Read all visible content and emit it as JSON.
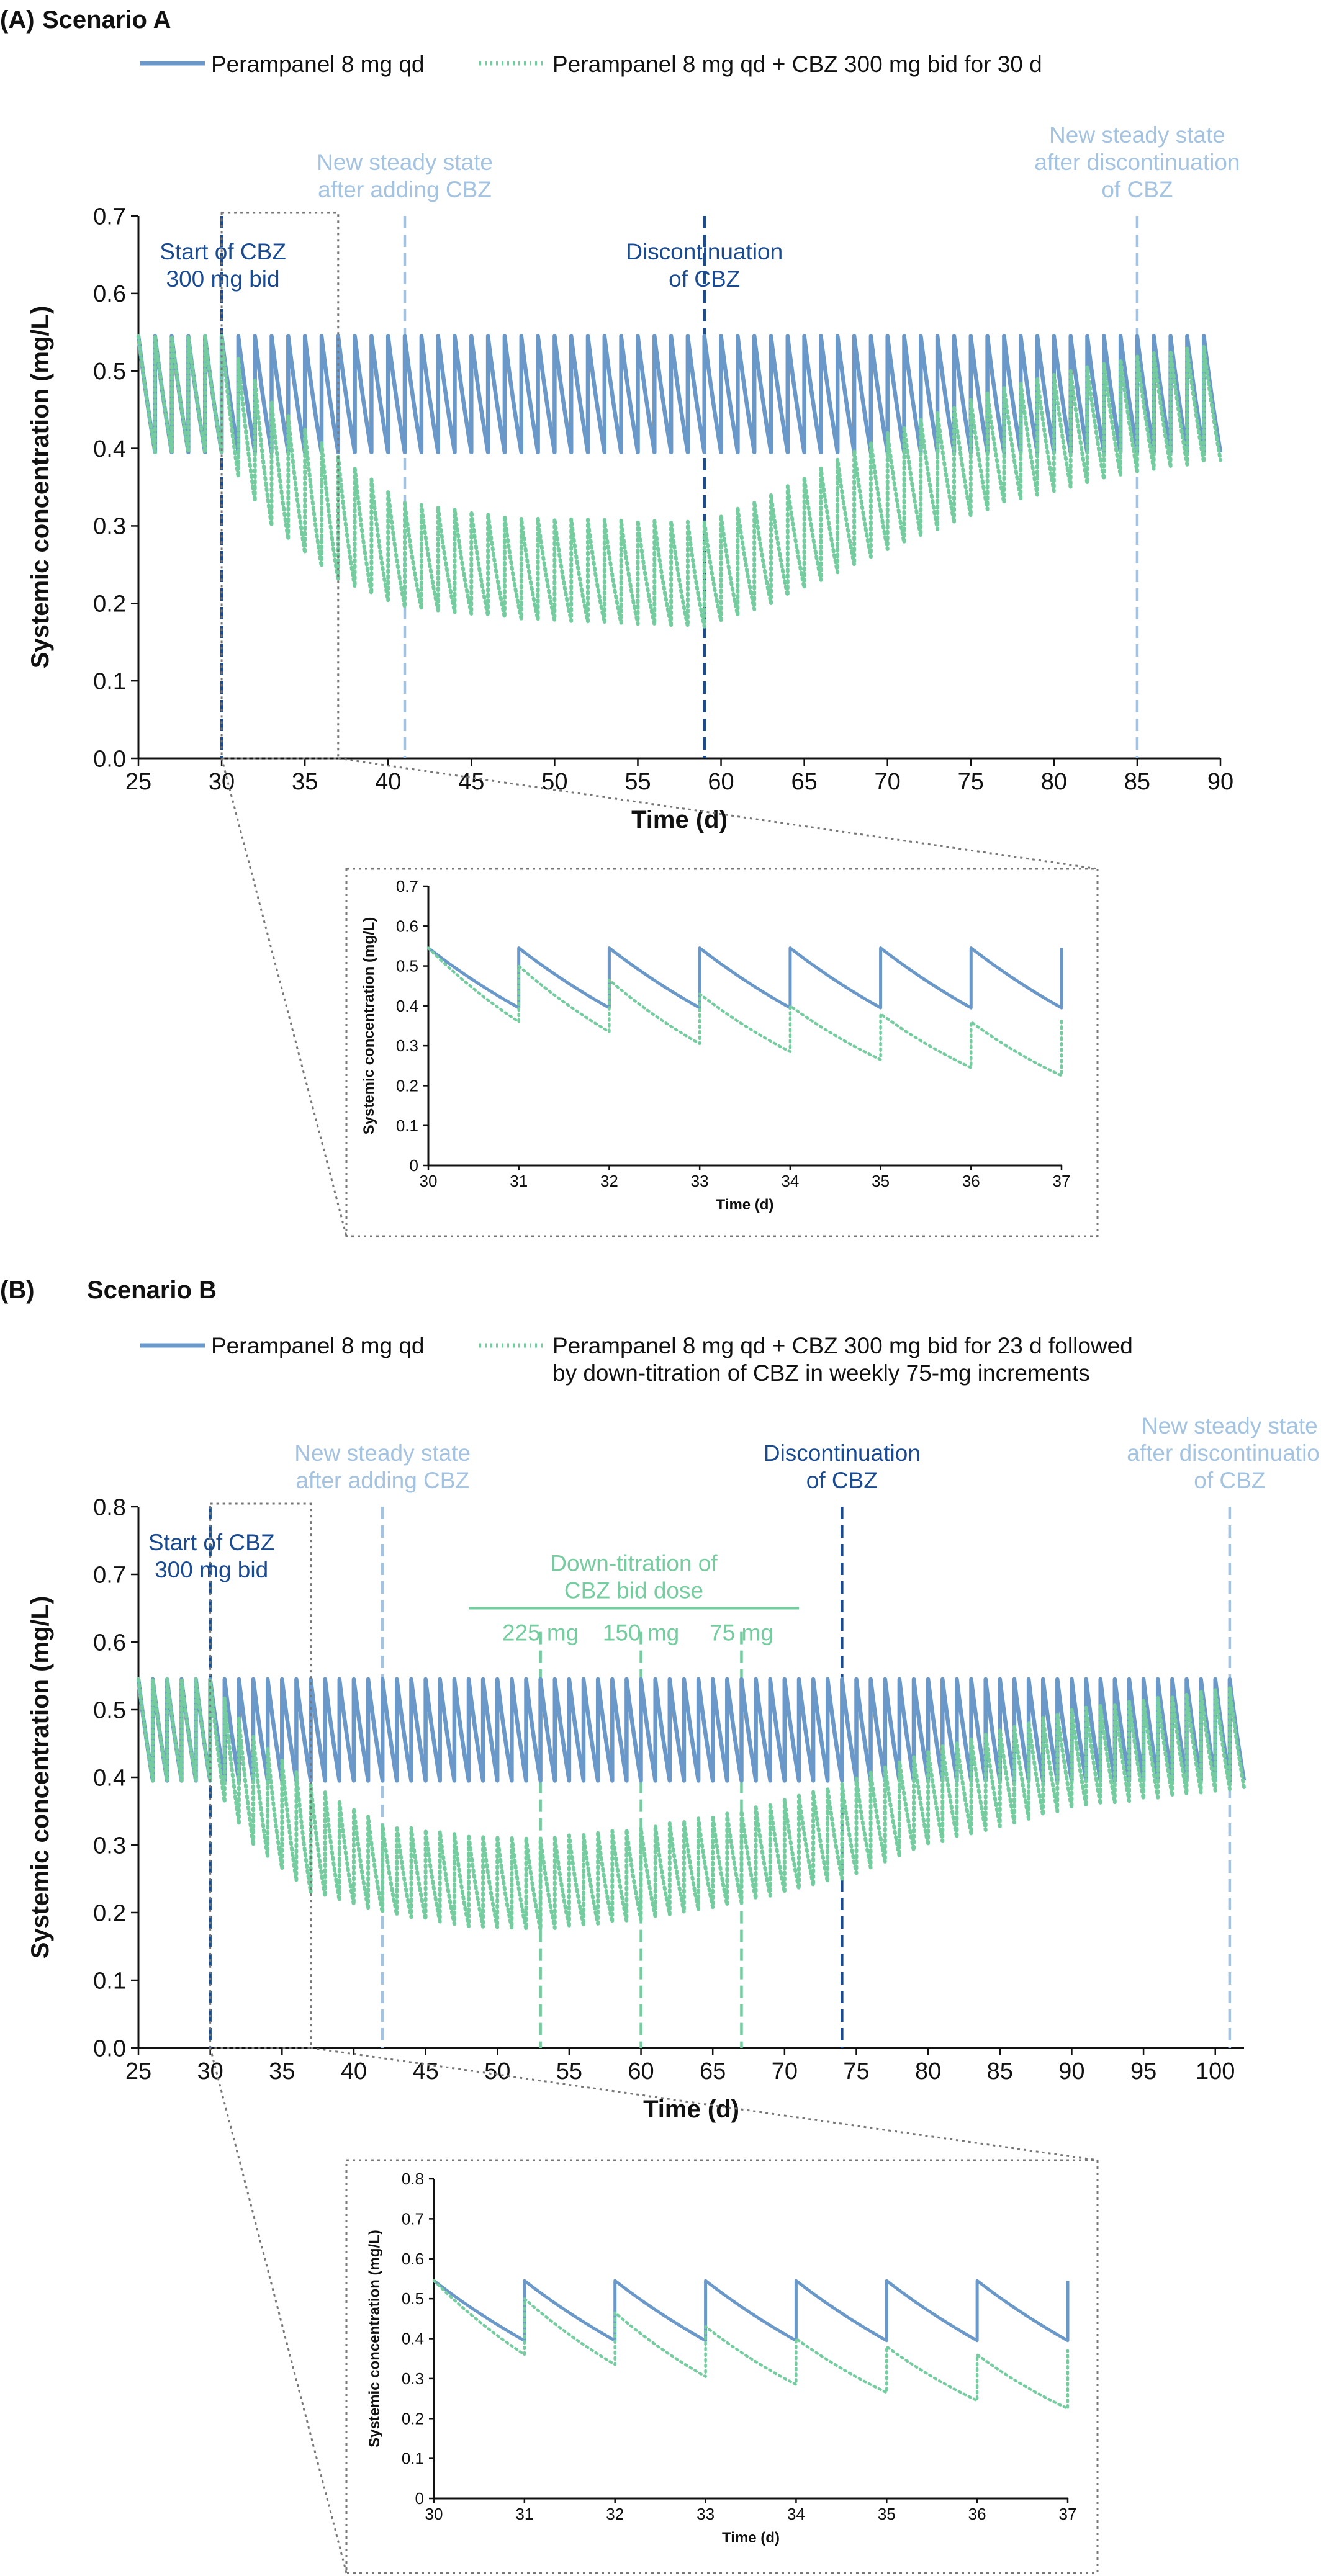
{
  "colors": {
    "solid": "#6a98c8",
    "dotted": "#74cc9f",
    "dark_dash": "#1a4a90",
    "light_dash": "#a3c3e0",
    "titration": "#74cc9f",
    "box": "#777777"
  },
  "panels": [
    {
      "letter": "(A)",
      "title": "Scenario A",
      "legend": {
        "solid": "Perampanel 8 mg qd",
        "dotted": [
          "Perampanel 8 mg qd + CBZ 300 mg bid for 30 d"
        ]
      }
    },
    {
      "letter": "(B)",
      "title": "Scenario B",
      "legend": {
        "solid": "Perampanel 8 mg qd",
        "dotted": [
          "Perampanel 8 mg qd + CBZ 300 mg bid for 23 d followed",
          "by down-titration of CBZ in weekly 75-mg increments"
        ]
      }
    }
  ],
  "chart_data": [
    {
      "id": "A-main",
      "type": "line",
      "xlabel": "Time (d)",
      "ylabel": "Systemic concentration (mg/L)",
      "xlim": [
        25,
        90
      ],
      "ylim": [
        0,
        0.7
      ],
      "xticks": [
        25,
        30,
        35,
        40,
        45,
        50,
        55,
        60,
        65,
        70,
        75,
        80,
        85,
        90
      ],
      "yticks": [
        "0.0",
        "0.1",
        "0.2",
        "0.3",
        "0.4",
        "0.5",
        "0.6",
        "0.7"
      ],
      "series": [
        {
          "name": "Perampanel 8 mg qd",
          "style": "solid",
          "dose_interval_d": 1,
          "peak": 0.545,
          "trough": 0.395
        },
        {
          "name": "Perampanel 8 mg qd + CBZ 300 mg bid for 30 d",
          "style": "dotted",
          "dose_interval_d": 1,
          "trough_profile": [
            [
              25,
              0.395
            ],
            [
              30,
              0.395
            ],
            [
              33,
              0.3
            ],
            [
              37,
              0.23
            ],
            [
              41,
              0.195
            ],
            [
              48,
              0.18
            ],
            [
              59,
              0.17
            ],
            [
              63,
              0.2
            ],
            [
              70,
              0.27
            ],
            [
              77,
              0.33
            ],
            [
              85,
              0.37
            ],
            [
              90,
              0.385
            ]
          ],
          "peak_profile": [
            [
              25,
              0.545
            ],
            [
              30,
              0.545
            ],
            [
              33,
              0.46
            ],
            [
              37,
              0.39
            ],
            [
              41,
              0.33
            ],
            [
              48,
              0.31
            ],
            [
              59,
              0.305
            ],
            [
              63,
              0.34
            ],
            [
              70,
              0.42
            ],
            [
              77,
              0.48
            ],
            [
              85,
              0.52
            ],
            [
              90,
              0.535
            ]
          ]
        }
      ],
      "annotations": [
        {
          "x": 30,
          "style": "dark",
          "text": [
            "Start of CBZ",
            "300 mg bid"
          ],
          "pos": "inside-left"
        },
        {
          "x": 41,
          "style": "light",
          "text": [
            "New steady state",
            "after adding CBZ"
          ],
          "pos": "above"
        },
        {
          "x": 59,
          "style": "dark",
          "text": [
            "Discontinuation",
            "of CBZ"
          ],
          "pos": "inside"
        },
        {
          "x": 85,
          "style": "light",
          "text": [
            "New steady state",
            "after discontinuation",
            "of CBZ"
          ],
          "pos": "above"
        }
      ],
      "zoom_box": [
        30,
        37
      ]
    },
    {
      "id": "A-inset",
      "type": "line",
      "xlabel": "Time (d)",
      "ylabel": "Systemic concentration (mg/L)",
      "xlim": [
        30,
        37
      ],
      "ylim": [
        0,
        0.7
      ],
      "xticks": [
        30,
        31,
        32,
        33,
        34,
        35,
        36,
        37
      ],
      "yticks": [
        "0",
        "0.1",
        "0.2",
        "0.3",
        "0.4",
        "0.5",
        "0.6",
        "0.7"
      ],
      "series": [
        {
          "name": "Perampanel 8 mg qd",
          "style": "solid",
          "peaks": [
            0.545,
            0.545,
            0.545,
            0.545,
            0.545,
            0.545,
            0.545,
            0.545
          ],
          "troughs": [
            0.395,
            0.395,
            0.395,
            0.395,
            0.395,
            0.395,
            0.395
          ]
        },
        {
          "name": "Perampanel 8 mg qd + CBZ 300 mg bid for 30 d",
          "style": "dotted",
          "peaks": [
            0.545,
            0.5,
            0.465,
            0.43,
            0.4,
            0.38,
            0.36,
            0.37
          ],
          "troughs": [
            0.36,
            0.335,
            0.305,
            0.285,
            0.265,
            0.245,
            0.225
          ]
        }
      ]
    },
    {
      "id": "B-main",
      "type": "line",
      "xlabel": "Time (d)",
      "ylabel": "Systemic concentration (mg/L)",
      "xlim": [
        25,
        102
      ],
      "ylim": [
        0,
        0.8
      ],
      "xticks": [
        25,
        30,
        35,
        40,
        45,
        50,
        55,
        60,
        65,
        70,
        75,
        80,
        85,
        90,
        95,
        100
      ],
      "yticks": [
        "0.0",
        "0.1",
        "0.2",
        "0.3",
        "0.4",
        "0.5",
        "0.6",
        "0.7",
        "0.8"
      ],
      "series": [
        {
          "name": "Perampanel 8 mg qd",
          "style": "solid",
          "dose_interval_d": 1,
          "peak": 0.545,
          "trough": 0.395
        },
        {
          "name": "Perampanel 8 mg qd + CBZ 300 mg bid for 23 d followed by down-titration of CBZ in weekly 75-mg increments",
          "style": "dotted",
          "dose_interval_d": 1,
          "trough_profile": [
            [
              25,
              0.395
            ],
            [
              30,
              0.395
            ],
            [
              33,
              0.3
            ],
            [
              37,
              0.23
            ],
            [
              42,
              0.2
            ],
            [
              48,
              0.18
            ],
            [
              53,
              0.175
            ],
            [
              60,
              0.19
            ],
            [
              67,
              0.215
            ],
            [
              74,
              0.25
            ],
            [
              80,
              0.3
            ],
            [
              90,
              0.355
            ],
            [
              102,
              0.385
            ]
          ],
          "peak_profile": [
            [
              25,
              0.545
            ],
            [
              30,
              0.545
            ],
            [
              33,
              0.46
            ],
            [
              37,
              0.39
            ],
            [
              42,
              0.33
            ],
            [
              48,
              0.315
            ],
            [
              53,
              0.31
            ],
            [
              60,
              0.325
            ],
            [
              67,
              0.35
            ],
            [
              74,
              0.39
            ],
            [
              80,
              0.44
            ],
            [
              90,
              0.5
            ],
            [
              102,
              0.535
            ]
          ]
        }
      ],
      "annotations": [
        {
          "x": 30,
          "style": "dark",
          "text": [
            "Start of CBZ",
            "300 mg bid"
          ],
          "pos": "inside-left"
        },
        {
          "x": 42,
          "style": "light",
          "text": [
            "New steady state",
            "after adding CBZ"
          ],
          "pos": "above"
        },
        {
          "x": 74,
          "style": "dark",
          "text": [
            "Discontinuation",
            "of CBZ"
          ],
          "pos": "above"
        },
        {
          "x": 101,
          "style": "light",
          "text": [
            "New steady state",
            "after discontinuation",
            "of CBZ"
          ],
          "pos": "above"
        }
      ],
      "titration": {
        "text": [
          "Down-titration of",
          "CBZ bid dose"
        ],
        "span": [
          48,
          71
        ],
        "steps": [
          {
            "x": 53,
            "label": "225 mg"
          },
          {
            "x": 60,
            "label": "150 mg"
          },
          {
            "x": 67,
            "label": "75 mg"
          }
        ]
      },
      "zoom_box": [
        30,
        37
      ]
    },
    {
      "id": "B-inset",
      "type": "line",
      "xlabel": "Time (d)",
      "ylabel": "Systemic concentration (mg/L)",
      "xlim": [
        30,
        37
      ],
      "ylim": [
        0,
        0.8
      ],
      "xticks": [
        30,
        31,
        32,
        33,
        34,
        35,
        36,
        37
      ],
      "yticks": [
        "0",
        "0.1",
        "0.2",
        "0.3",
        "0.4",
        "0.5",
        "0.6",
        "0.7",
        "0.8"
      ],
      "series": [
        {
          "name": "Perampanel 8 mg qd",
          "style": "solid",
          "peaks": [
            0.545,
            0.545,
            0.545,
            0.545,
            0.545,
            0.545,
            0.545,
            0.545
          ],
          "troughs": [
            0.395,
            0.395,
            0.395,
            0.395,
            0.395,
            0.395,
            0.395
          ]
        },
        {
          "name": "Perampanel 8 mg qd + CBZ 300 mg bid for 23 d followed by down-titration of CBZ in weekly 75-mg increments",
          "style": "dotted",
          "peaks": [
            0.545,
            0.5,
            0.465,
            0.43,
            0.4,
            0.38,
            0.36,
            0.37
          ],
          "troughs": [
            0.36,
            0.335,
            0.305,
            0.285,
            0.265,
            0.245,
            0.225
          ]
        }
      ]
    }
  ]
}
